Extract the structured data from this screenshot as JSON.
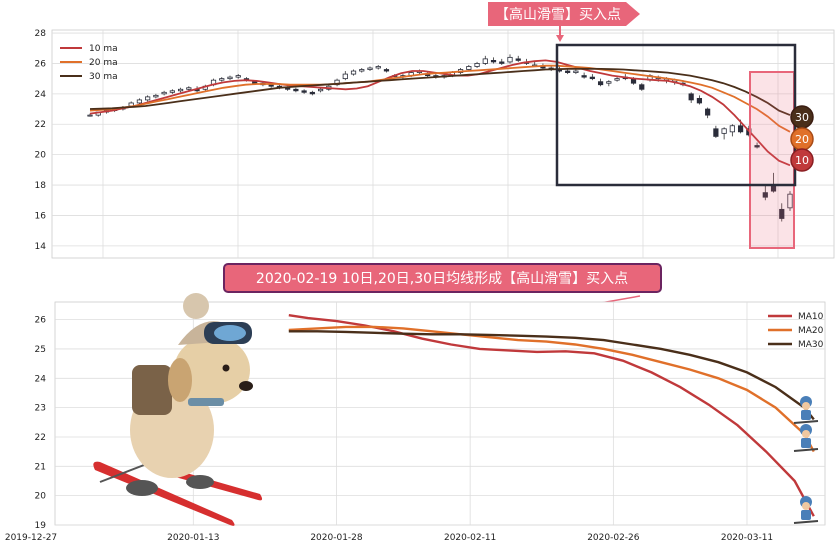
{
  "colors": {
    "ma10": "#c0393b",
    "ma20": "#e0702a",
    "ma30": "#4a2f1a",
    "banner_bg": "#e8667a",
    "banner2_border": "#6b2460",
    "highlight_box": "#2a2d3a",
    "highlight_pink": "#e8667a",
    "grid": "#dddddd"
  },
  "top_banner": {
    "text": "【高山滑雪】买入点"
  },
  "middle_banner": {
    "text": "2020-02-19 10日,20日,30日均线形成【高山滑雪】买入点"
  },
  "badges": [
    "30",
    "20",
    "10"
  ],
  "chart_data": [
    {
      "type": "candlestick",
      "title": "",
      "legend": {
        "placement": "top-left",
        "entries": [
          "10 ma",
          "20 ma",
          "30 ma"
        ]
      },
      "ylim": [
        13.2,
        28.2
      ],
      "yticks": [
        "14",
        "16",
        "18",
        "20",
        "22",
        "24",
        "26",
        "28"
      ],
      "grid": true,
      "ohlc": [
        [
          22.6,
          22.7,
          22.5,
          22.6
        ],
        [
          22.6,
          22.8,
          22.5,
          22.8
        ],
        [
          22.8,
          23.0,
          22.7,
          22.9
        ],
        [
          22.9,
          23.1,
          22.8,
          23.0
        ],
        [
          23.0,
          23.2,
          22.9,
          23.1
        ],
        [
          23.2,
          23.5,
          23.1,
          23.4
        ],
        [
          23.4,
          23.7,
          23.3,
          23.6
        ],
        [
          23.6,
          23.9,
          23.5,
          23.8
        ],
        [
          23.8,
          24.0,
          23.7,
          23.9
        ],
        [
          24.0,
          24.2,
          23.9,
          24.1
        ],
        [
          24.1,
          24.3,
          24.0,
          24.2
        ],
        [
          24.2,
          24.4,
          24.1,
          24.3
        ],
        [
          24.3,
          24.5,
          24.2,
          24.4
        ],
        [
          24.3,
          24.5,
          24.1,
          24.2
        ],
        [
          24.3,
          24.6,
          24.2,
          24.5
        ],
        [
          24.6,
          25.0,
          24.5,
          24.9
        ],
        [
          24.9,
          25.1,
          24.8,
          25.0
        ],
        [
          25.0,
          25.2,
          24.9,
          25.1
        ],
        [
          25.1,
          25.3,
          25.0,
          25.2
        ],
        [
          25.0,
          25.1,
          24.8,
          24.9
        ],
        [
          24.8,
          24.9,
          24.6,
          24.7
        ],
        [
          24.7,
          24.8,
          24.5,
          24.6
        ],
        [
          24.6,
          24.7,
          24.4,
          24.5
        ],
        [
          24.5,
          24.6,
          24.3,
          24.4
        ],
        [
          24.4,
          24.5,
          24.2,
          24.3
        ],
        [
          24.3,
          24.4,
          24.1,
          24.2
        ],
        [
          24.2,
          24.3,
          24.0,
          24.1
        ],
        [
          24.1,
          24.2,
          23.9,
          24.0
        ],
        [
          24.2,
          24.4,
          24.1,
          24.3
        ],
        [
          24.3,
          24.6,
          24.2,
          24.5
        ],
        [
          24.6,
          25.0,
          24.5,
          24.9
        ],
        [
          25.0,
          25.5,
          24.9,
          25.3
        ],
        [
          25.3,
          25.6,
          25.2,
          25.5
        ],
        [
          25.5,
          25.7,
          25.4,
          25.6
        ],
        [
          25.6,
          25.8,
          25.5,
          25.7
        ],
        [
          25.7,
          25.9,
          25.6,
          25.8
        ],
        [
          25.6,
          25.7,
          25.4,
          25.5
        ],
        [
          25.2,
          25.3,
          25.1,
          25.2
        ],
        [
          25.1,
          25.3,
          25.0,
          25.2
        ],
        [
          25.2,
          25.5,
          25.1,
          25.4
        ],
        [
          25.4,
          25.6,
          25.3,
          25.5
        ],
        [
          25.3,
          25.4,
          25.1,
          25.2
        ],
        [
          25.2,
          25.3,
          25.0,
          25.1
        ],
        [
          25.1,
          25.3,
          25.0,
          25.2
        ],
        [
          25.2,
          25.5,
          25.1,
          25.4
        ],
        [
          25.4,
          25.7,
          25.3,
          25.6
        ],
        [
          25.6,
          25.9,
          25.5,
          25.8
        ],
        [
          25.8,
          26.1,
          25.7,
          26.0
        ],
        [
          26.0,
          26.5,
          25.9,
          26.3
        ],
        [
          26.2,
          26.4,
          26.0,
          26.1
        ],
        [
          26.1,
          26.3,
          25.9,
          26.0
        ],
        [
          26.1,
          26.6,
          26.0,
          26.4
        ],
        [
          26.3,
          26.5,
          26.1,
          26.2
        ],
        [
          26.1,
          26.3,
          25.9,
          26.0
        ],
        [
          25.9,
          26.1,
          25.8,
          25.9
        ],
        [
          25.8,
          26.0,
          25.6,
          25.7
        ],
        [
          25.7,
          25.9,
          25.5,
          25.6
        ],
        [
          25.6,
          25.8,
          25.4,
          25.5
        ],
        [
          25.5,
          25.7,
          25.3,
          25.4
        ],
        [
          25.4,
          25.6,
          25.3,
          25.5
        ],
        [
          25.2,
          25.4,
          25.0,
          25.1
        ],
        [
          25.1,
          25.3,
          24.9,
          25.0
        ],
        [
          24.8,
          25.0,
          24.5,
          24.6
        ],
        [
          24.7,
          24.9,
          24.5,
          24.8
        ],
        [
          24.9,
          25.1,
          24.8,
          25.0
        ],
        [
          25.1,
          25.3,
          24.9,
          25.0
        ],
        [
          25.0,
          25.1,
          24.6,
          24.7
        ],
        [
          24.6,
          24.7,
          24.2,
          24.3
        ],
        [
          24.9,
          25.3,
          24.8,
          25.2
        ],
        [
          25.0,
          25.2,
          24.8,
          25.1
        ],
        [
          24.9,
          25.1,
          24.7,
          25.0
        ],
        [
          24.8,
          25.0,
          24.6,
          24.9
        ],
        [
          24.7,
          24.9,
          24.5,
          24.6
        ],
        [
          24.0,
          24.1,
          23.4,
          23.6
        ],
        [
          23.7,
          23.9,
          23.3,
          23.4
        ],
        [
          23.0,
          23.1,
          22.4,
          22.6
        ],
        [
          21.7,
          21.9,
          21.1,
          21.2
        ],
        [
          21.4,
          21.8,
          21.0,
          21.7
        ],
        [
          21.5,
          22.0,
          21.2,
          21.9
        ],
        [
          21.9,
          22.3,
          21.4,
          21.5
        ],
        [
          21.7,
          21.9,
          21.2,
          21.3
        ],
        [
          20.6,
          20.8,
          20.4,
          20.5
        ],
        [
          17.5,
          18.0,
          17.0,
          17.2
        ],
        [
          18.0,
          18.8,
          17.5,
          17.6
        ],
        [
          16.4,
          16.8,
          15.6,
          15.8
        ],
        [
          16.5,
          17.6,
          16.3,
          17.4
        ]
      ],
      "series": [
        {
          "name": "10 ma",
          "values": [
            22.7,
            22.8,
            22.9,
            23.05,
            23.2,
            23.4,
            23.6,
            23.8,
            24.0,
            24.2,
            24.4,
            24.6,
            24.75,
            24.85,
            24.9,
            24.85,
            24.75,
            24.65,
            24.55,
            24.5,
            24.45,
            24.4,
            24.35,
            24.3,
            24.35,
            24.5,
            24.8,
            25.1,
            25.35,
            25.5,
            25.5,
            25.4,
            25.3,
            25.2,
            25.2,
            25.3,
            25.5,
            25.7,
            25.9,
            26.05,
            26.15,
            26.2,
            26.1,
            25.9,
            25.7,
            25.5,
            25.35,
            25.2,
            25.1,
            25.0,
            24.95,
            24.9,
            24.85,
            24.7,
            24.5,
            24.2,
            23.8,
            23.3,
            22.6,
            21.8,
            21.0,
            20.2,
            19.6,
            19.3
          ]
        },
        {
          "name": "20 ma",
          "values": [
            22.9,
            22.95,
            23.0,
            23.1,
            23.2,
            23.35,
            23.5,
            23.65,
            23.8,
            23.95,
            24.1,
            24.25,
            24.4,
            24.5,
            24.6,
            24.65,
            24.65,
            24.65,
            24.6,
            24.6,
            24.6,
            24.6,
            24.65,
            24.7,
            24.75,
            24.8,
            24.9,
            25.0,
            25.1,
            25.2,
            25.3,
            25.35,
            25.4,
            25.45,
            25.5,
            25.55,
            25.6,
            25.65,
            25.7,
            25.75,
            25.8,
            25.85,
            25.85,
            25.8,
            25.75,
            25.7,
            25.6,
            25.5,
            25.4,
            25.3,
            25.2,
            25.1,
            25.0,
            24.9,
            24.75,
            24.6,
            24.4,
            24.1,
            23.8,
            23.4,
            23.0,
            22.5,
            21.9,
            21.5
          ]
        },
        {
          "name": "30 ma",
          "values": [
            23.0,
            23.02,
            23.05,
            23.1,
            23.15,
            23.2,
            23.3,
            23.4,
            23.5,
            23.6,
            23.7,
            23.8,
            23.9,
            24.0,
            24.1,
            24.2,
            24.3,
            24.4,
            24.45,
            24.5,
            24.55,
            24.6,
            24.65,
            24.7,
            24.75,
            24.8,
            24.85,
            24.9,
            24.95,
            25.0,
            25.05,
            25.1,
            25.15,
            25.2,
            25.25,
            25.3,
            25.35,
            25.4,
            25.45,
            25.5,
            25.55,
            25.6,
            25.62,
            25.64,
            25.65,
            25.65,
            25.64,
            25.62,
            25.6,
            25.55,
            25.5,
            25.45,
            25.4,
            25.3,
            25.2,
            25.05,
            24.9,
            24.7,
            24.45,
            24.15,
            23.8,
            23.4,
            22.9,
            22.6
          ]
        }
      ]
    },
    {
      "type": "line",
      "title": "",
      "legend": {
        "placement": "top-right",
        "entries": [
          "MA10",
          "MA20",
          "MA30"
        ]
      },
      "xlim": [
        "2019-12-27",
        "2020-03-18"
      ],
      "xticks": [
        "2019-12-27",
        "2020-01-13",
        "2020-01-28",
        "2020-02-11",
        "2020-02-26",
        "2020-03-11"
      ],
      "ylim": [
        19,
        26.6
      ],
      "yticks": [
        "19",
        "20",
        "21",
        "22",
        "23",
        "24",
        "25",
        "26"
      ],
      "grid": true,
      "series": [
        {
          "name": "MA10",
          "x": [
            "2020-01-23",
            "2020-01-25",
            "2020-01-28",
            "2020-01-31",
            "2020-02-03",
            "2020-02-06",
            "2020-02-09",
            "2020-02-12",
            "2020-02-15",
            "2020-02-18",
            "2020-02-21",
            "2020-02-24",
            "2020-02-27",
            "2020-03-01",
            "2020-03-04",
            "2020-03-07",
            "2020-03-10",
            "2020-03-13",
            "2020-03-16",
            "2020-03-18"
          ],
          "values": [
            26.15,
            26.05,
            25.95,
            25.8,
            25.6,
            25.35,
            25.15,
            25.0,
            24.95,
            24.9,
            24.92,
            24.85,
            24.6,
            24.2,
            23.7,
            23.1,
            22.4,
            21.5,
            20.5,
            19.3
          ]
        },
        {
          "name": "MA20",
          "x": [
            "2020-01-23",
            "2020-01-26",
            "2020-01-29",
            "2020-02-01",
            "2020-02-04",
            "2020-02-07",
            "2020-02-10",
            "2020-02-13",
            "2020-02-16",
            "2020-02-19",
            "2020-02-22",
            "2020-02-25",
            "2020-02-28",
            "2020-03-02",
            "2020-03-05",
            "2020-03-08",
            "2020-03-11",
            "2020-03-14",
            "2020-03-17",
            "2020-03-18"
          ],
          "values": [
            25.65,
            25.7,
            25.75,
            25.75,
            25.7,
            25.6,
            25.5,
            25.4,
            25.3,
            25.25,
            25.15,
            25.0,
            24.8,
            24.55,
            24.3,
            24.0,
            23.6,
            23.0,
            22.1,
            21.5
          ]
        },
        {
          "name": "MA30",
          "x": [
            "2020-01-23",
            "2020-01-26",
            "2020-01-29",
            "2020-02-01",
            "2020-02-04",
            "2020-02-07",
            "2020-02-10",
            "2020-02-13",
            "2020-02-16",
            "2020-02-19",
            "2020-02-22",
            "2020-02-25",
            "2020-02-28",
            "2020-03-02",
            "2020-03-05",
            "2020-03-08",
            "2020-03-11",
            "2020-03-14",
            "2020-03-17",
            "2020-03-18"
          ],
          "values": [
            25.6,
            25.6,
            25.58,
            25.55,
            25.52,
            25.5,
            25.5,
            25.48,
            25.45,
            25.42,
            25.38,
            25.3,
            25.15,
            25.0,
            24.8,
            24.55,
            24.2,
            23.7,
            23.0,
            22.6
          ]
        }
      ]
    }
  ]
}
